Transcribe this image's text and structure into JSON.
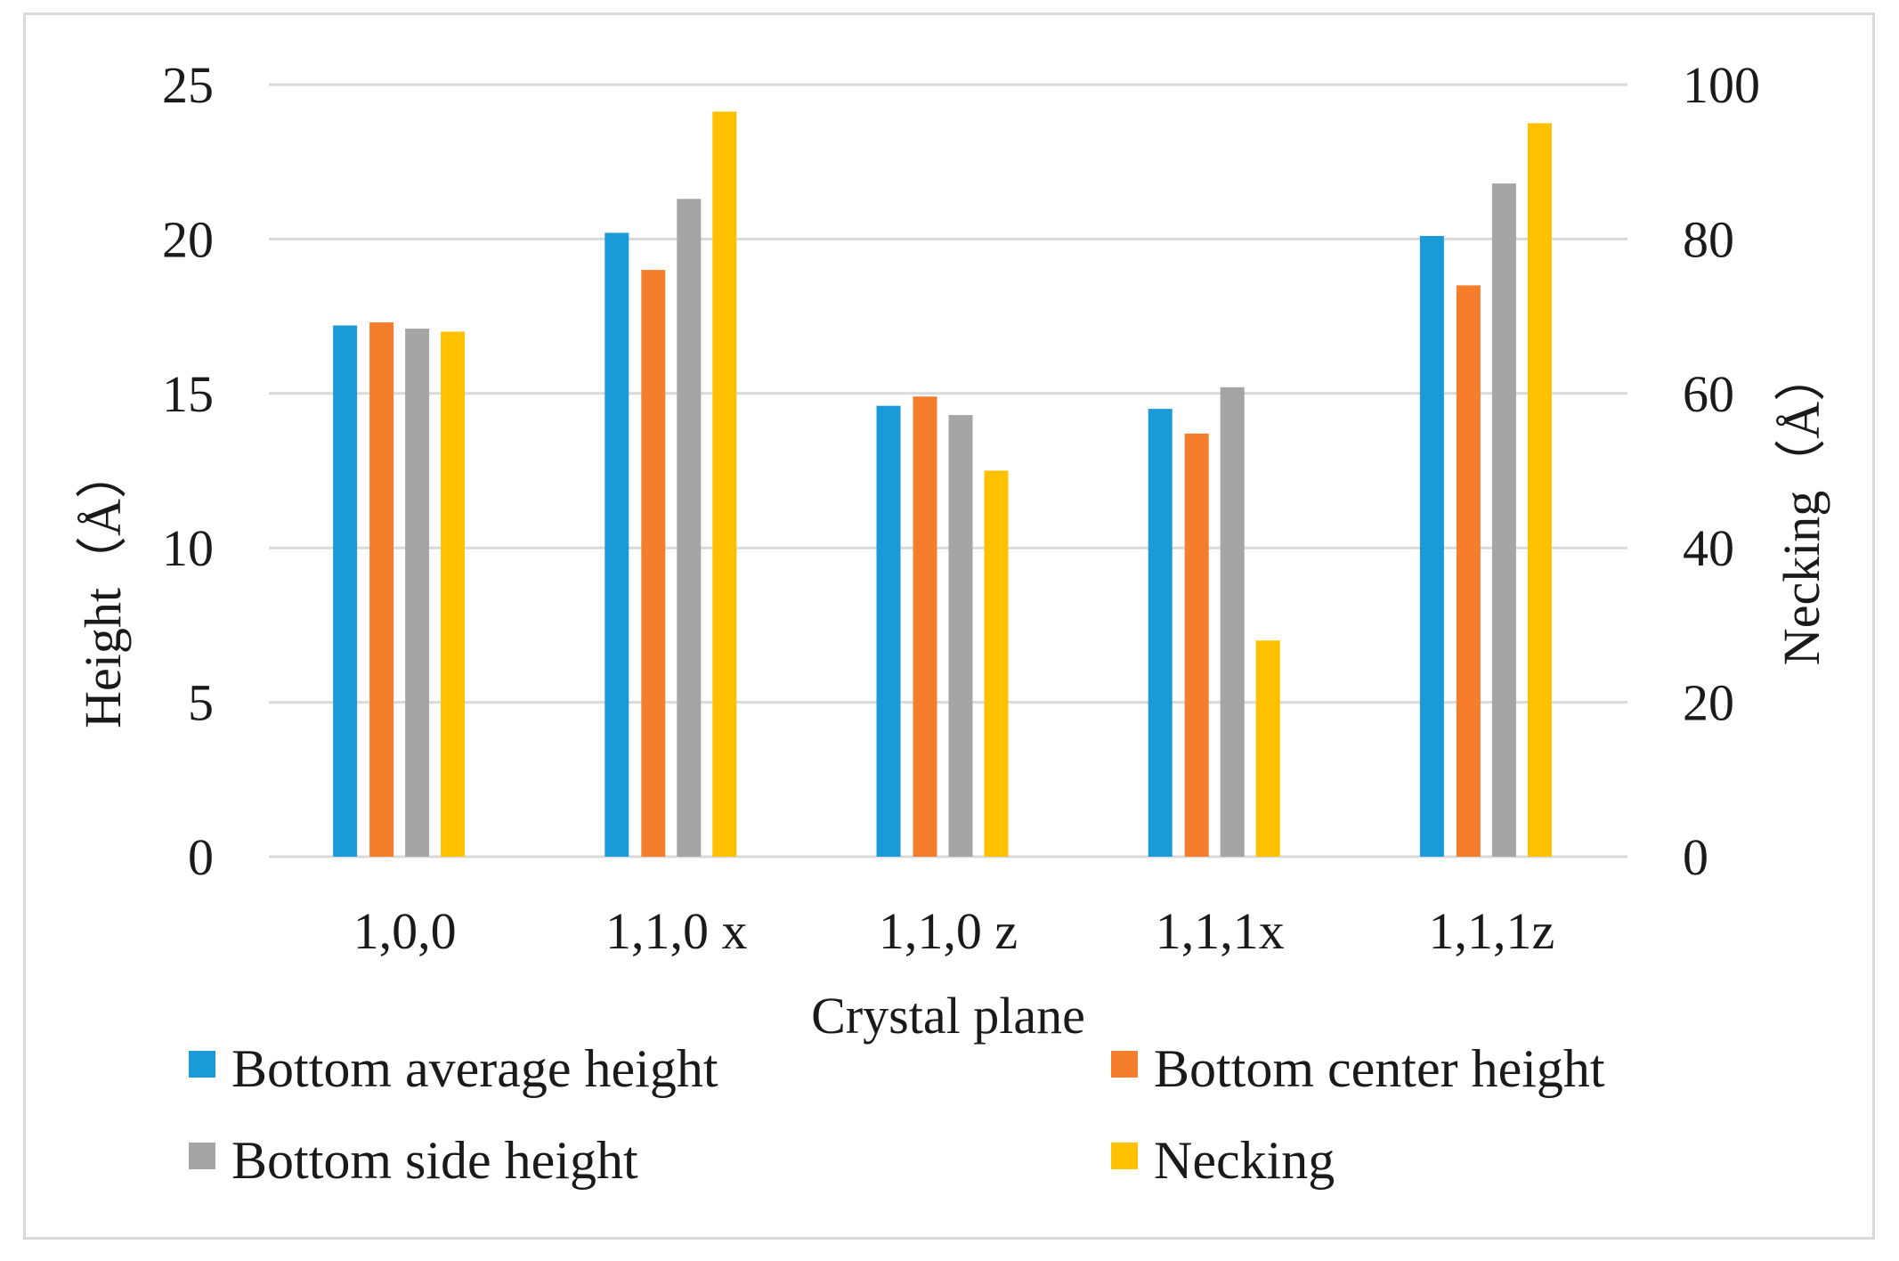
{
  "chart_data": {
    "type": "bar",
    "title": "",
    "categories": [
      "1,0,0",
      "1,1,0 x",
      "1,1,0 z",
      "1,1,1x",
      "1,1,1z"
    ],
    "xlabel": "Crystal plane",
    "ylabel": "Height（Å）",
    "y2label": "Necking（Å）",
    "ylim": [
      0,
      25
    ],
    "y2lim": [
      0,
      100
    ],
    "yticks": [
      0,
      5,
      10,
      15,
      20,
      25
    ],
    "y2ticks": [
      0,
      20,
      40,
      60,
      80,
      100
    ],
    "grid": true,
    "legend_position": "bottom",
    "series": [
      {
        "name": "Bottom average height",
        "axis": "left",
        "color": "#1a9ad6",
        "values": [
          17.2,
          20.2,
          14.6,
          14.5,
          20.1
        ]
      },
      {
        "name": "Bottom center height",
        "axis": "left",
        "color": "#f47e2b",
        "values": [
          17.3,
          19.0,
          14.9,
          13.7,
          18.5
        ]
      },
      {
        "name": "Bottom side height",
        "axis": "left",
        "color": "#a5a5a5",
        "values": [
          17.1,
          21.3,
          14.3,
          15.2,
          21.8
        ]
      },
      {
        "name": "Necking",
        "axis": "right",
        "color": "#ffc000",
        "values": [
          68,
          96.5,
          50,
          28,
          95
        ]
      }
    ]
  }
}
